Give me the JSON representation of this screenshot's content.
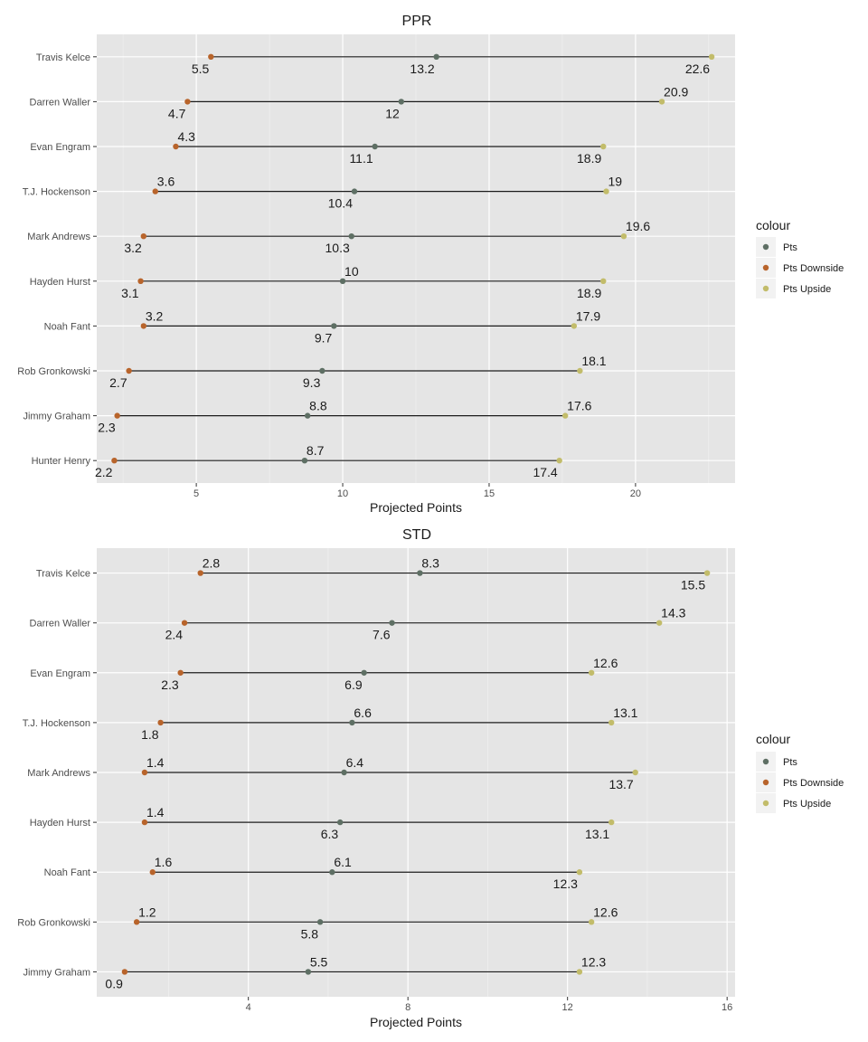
{
  "legend": {
    "title": "colour",
    "items": [
      {
        "label": "Pts",
        "color": "#5e6f64"
      },
      {
        "label": "Pts Downside",
        "color": "#b8642b"
      },
      {
        "label": "Pts Upside",
        "color": "#c2bc6a"
      }
    ]
  },
  "chart_data": [
    {
      "type": "dumbbell",
      "title": "PPR",
      "xlabel": "Projected Points",
      "ylabel": "",
      "xlim": [
        1.6,
        23.4
      ],
      "x_ticks": [
        5,
        10,
        15,
        20
      ],
      "grid": true,
      "legend_position": "right",
      "categories": [
        "Travis Kelce",
        "Darren Waller",
        "Evan Engram",
        "T.J. Hockenson",
        "Mark Andrews",
        "Hayden Hurst",
        "Noah Fant",
        "Rob Gronkowski",
        "Jimmy Graham",
        "Hunter Henry"
      ],
      "series": [
        {
          "name": "Pts Downside",
          "values": [
            5.5,
            4.7,
            4.3,
            3.6,
            3.2,
            3.1,
            3.2,
            2.7,
            2.3,
            2.2
          ]
        },
        {
          "name": "Pts",
          "values": [
            13.2,
            12,
            11.1,
            10.4,
            10.3,
            10,
            9.7,
            9.3,
            8.8,
            8.7
          ]
        },
        {
          "name": "Pts Upside",
          "values": [
            22.6,
            20.9,
            18.9,
            19,
            19.6,
            18.9,
            17.9,
            18.1,
            17.6,
            17.4
          ]
        }
      ],
      "labels_above": {
        "Pts Downside": [
          false,
          false,
          true,
          true,
          false,
          false,
          true,
          false,
          false,
          false
        ],
        "Pts": [
          false,
          false,
          false,
          false,
          false,
          true,
          false,
          false,
          true,
          true
        ],
        "Pts Upside": [
          false,
          true,
          false,
          true,
          true,
          false,
          true,
          true,
          true,
          false
        ]
      }
    },
    {
      "type": "dumbbell",
      "title": "STD",
      "xlabel": "Projected Points",
      "ylabel": "",
      "xlim": [
        0.2,
        16.2
      ],
      "x_ticks": [
        4,
        8,
        12,
        16
      ],
      "grid": true,
      "legend_position": "right",
      "categories": [
        "Travis Kelce",
        "Darren Waller",
        "Evan Engram",
        "T.J. Hockenson",
        "Mark Andrews",
        "Hayden Hurst",
        "Noah Fant",
        "Rob Gronkowski",
        "Jimmy Graham"
      ],
      "series": [
        {
          "name": "Pts Downside",
          "values": [
            2.8,
            2.4,
            2.3,
            1.8,
            1.4,
            1.4,
            1.6,
            1.2,
            0.9
          ]
        },
        {
          "name": "Pts",
          "values": [
            8.3,
            7.6,
            6.9,
            6.6,
            6.4,
            6.3,
            6.1,
            5.8,
            5.5
          ]
        },
        {
          "name": "Pts Upside",
          "values": [
            15.5,
            14.3,
            12.6,
            13.1,
            13.7,
            13.1,
            12.3,
            12.6,
            12.3
          ]
        }
      ],
      "labels_above": {
        "Pts Downside": [
          true,
          false,
          false,
          false,
          true,
          true,
          true,
          true,
          false
        ],
        "Pts": [
          true,
          false,
          false,
          true,
          true,
          false,
          true,
          false,
          true
        ],
        "Pts Upside": [
          false,
          true,
          true,
          true,
          false,
          false,
          false,
          true,
          true
        ]
      }
    }
  ]
}
